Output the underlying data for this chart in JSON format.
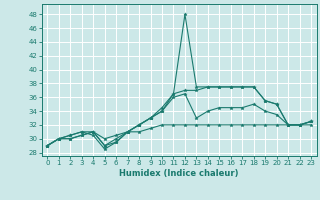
{
  "title": "",
  "xlabel": "Humidex (Indice chaleur)",
  "xlim": [
    -0.5,
    23.5
  ],
  "ylim": [
    27.5,
    49.5
  ],
  "xticks": [
    0,
    1,
    2,
    3,
    4,
    5,
    6,
    7,
    8,
    9,
    10,
    11,
    12,
    13,
    14,
    15,
    16,
    17,
    18,
    19,
    20,
    21,
    22,
    23
  ],
  "yticks": [
    28,
    30,
    32,
    34,
    36,
    38,
    40,
    42,
    44,
    46,
    48
  ],
  "bg_color": "#cce8e8",
  "line_color": "#1a7a6e",
  "grid_color": "#ffffff",
  "lines": [
    [
      29,
      30,
      30,
      30.5,
      31,
      29,
      29.5,
      31,
      31,
      31.5,
      32,
      32,
      32,
      32,
      32,
      32,
      32,
      32,
      32,
      32,
      32,
      32,
      32,
      32
    ],
    [
      29,
      30,
      30.5,
      31,
      30.5,
      28.5,
      29.5,
      31,
      32,
      33,
      34,
      36.5,
      48,
      37.5,
      37.5,
      37.5,
      37.5,
      37.5,
      37.5,
      35.5,
      35,
      32,
      32,
      32.5
    ],
    [
      29,
      30,
      30,
      30.5,
      31,
      29,
      30,
      31,
      32,
      33,
      34.5,
      36.5,
      37,
      37,
      37.5,
      37.5,
      37.5,
      37.5,
      37.5,
      35.5,
      35,
      32,
      32,
      32.5
    ],
    [
      29,
      30,
      30.5,
      31,
      31,
      30,
      30.5,
      31,
      32,
      33,
      34,
      36,
      36.5,
      33,
      34,
      34.5,
      34.5,
      34.5,
      35,
      34,
      33.5,
      32,
      32,
      32.5
    ]
  ]
}
